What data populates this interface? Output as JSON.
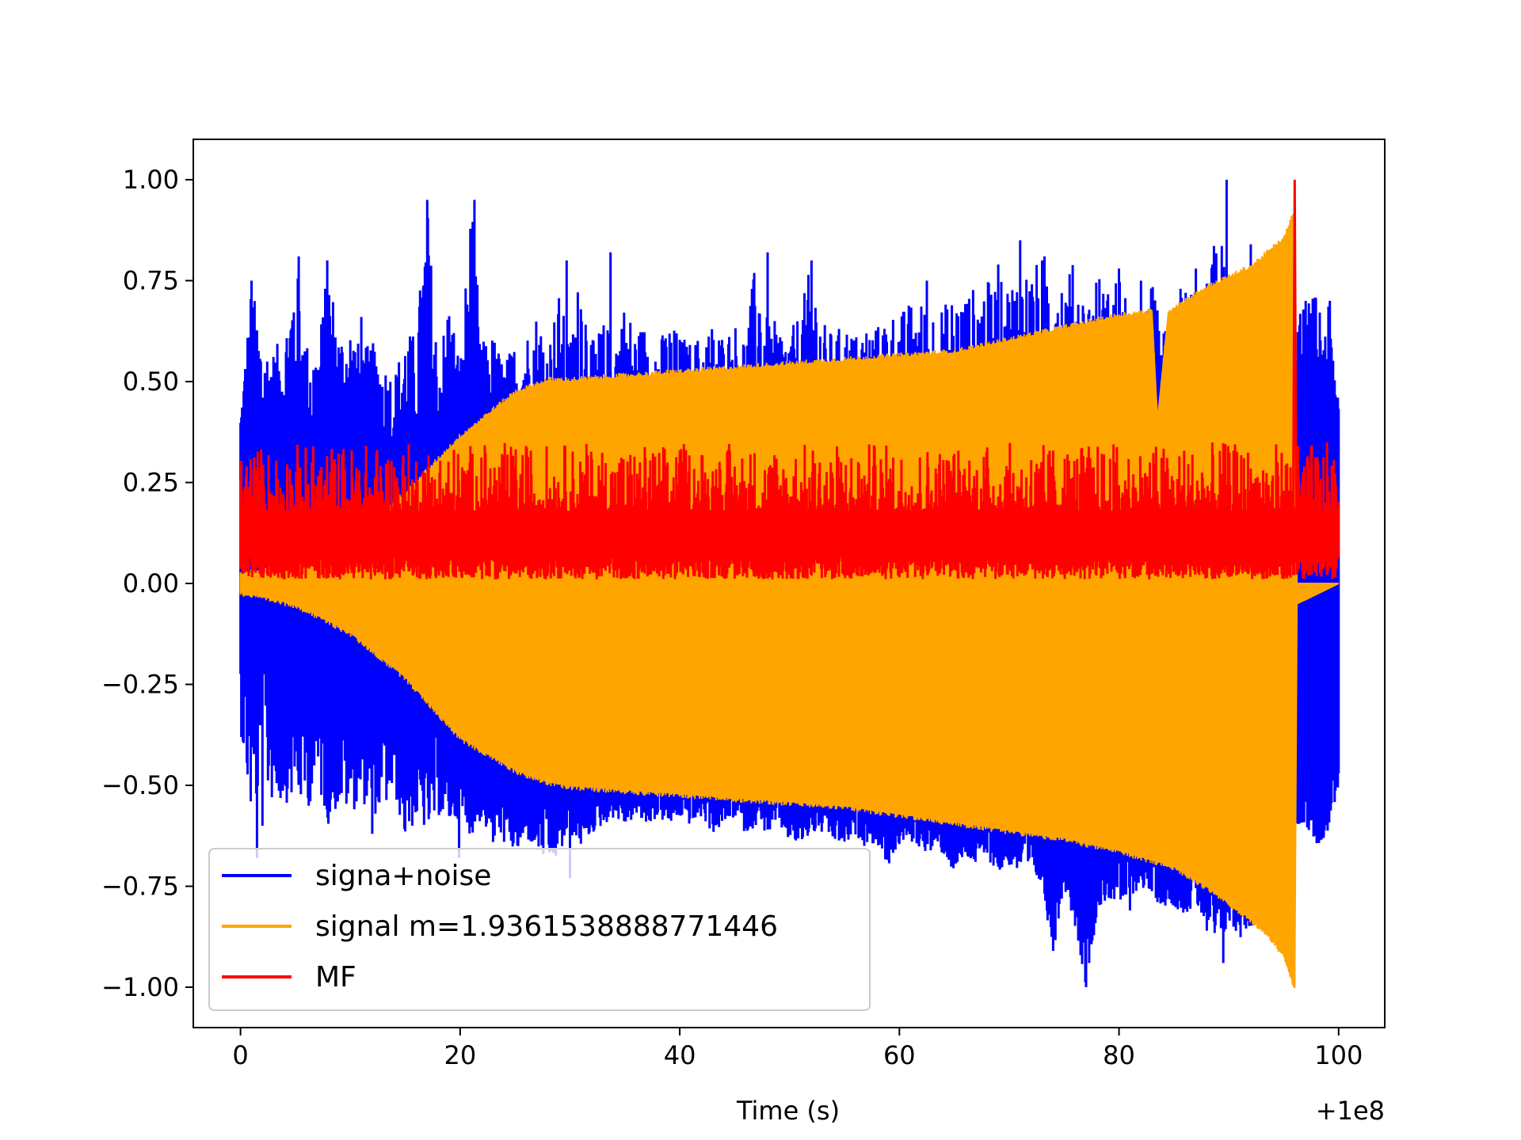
{
  "chart_data": {
    "type": "line",
    "title": "",
    "xlabel": "Time (s)",
    "ylabel": "",
    "x_offset_label": "+1e8",
    "xlim": [
      -4.3,
      104.2
    ],
    "ylim": [
      -1.1,
      1.1
    ],
    "x_ticks": [
      0,
      20,
      40,
      60,
      80,
      100
    ],
    "x_tick_labels": [
      "0",
      "20",
      "40",
      "60",
      "80",
      "100"
    ],
    "y_ticks": [
      1.0,
      0.75,
      0.5,
      0.25,
      0.0,
      -0.25,
      -0.5,
      -0.75,
      -1.0
    ],
    "y_tick_labels": [
      "1.00",
      "0.75",
      "0.50",
      "0.25",
      "0.00",
      "−0.25",
      "−0.50",
      "−0.75",
      "−1.00"
    ],
    "grid": false,
    "legend_position": "lower-left",
    "series": [
      {
        "name": "signa+noise",
        "color": "#0000ff",
        "upper": [
          [
            0,
            0.44
          ],
          [
            1,
            0.75
          ],
          [
            2,
            0.6
          ],
          [
            3,
            0.58
          ],
          [
            4,
            0.62
          ],
          [
            5,
            0.81
          ],
          [
            6,
            0.6
          ],
          [
            7,
            0.58
          ],
          [
            8,
            0.8
          ],
          [
            9,
            0.62
          ],
          [
            10,
            0.65
          ],
          [
            11,
            0.58
          ],
          [
            12,
            0.6
          ],
          [
            13,
            0.55
          ],
          [
            14,
            0.52
          ],
          [
            15,
            0.62
          ],
          [
            16,
            0.62
          ],
          [
            17,
            0.95
          ],
          [
            18,
            0.55
          ],
          [
            19,
            0.72
          ],
          [
            20,
            0.55
          ],
          [
            21,
            0.95
          ],
          [
            22,
            0.6
          ],
          [
            23,
            0.62
          ],
          [
            24,
            0.55
          ],
          [
            25,
            0.6
          ],
          [
            26,
            0.62
          ],
          [
            27,
            0.68
          ],
          [
            28,
            0.6
          ],
          [
            29,
            0.72
          ],
          [
            30,
            0.6
          ],
          [
            31,
            0.8
          ],
          [
            32,
            0.6
          ],
          [
            33,
            0.65
          ],
          [
            34,
            0.62
          ],
          [
            35,
            0.7
          ],
          [
            36,
            0.63
          ],
          [
            37,
            0.65
          ],
          [
            38,
            0.6
          ],
          [
            39,
            0.65
          ],
          [
            40,
            0.62
          ],
          [
            41,
            0.6
          ],
          [
            42,
            0.62
          ],
          [
            43,
            0.65
          ],
          [
            44,
            0.62
          ],
          [
            45,
            0.65
          ],
          [
            46,
            0.62
          ],
          [
            47,
            0.82
          ],
          [
            48,
            0.65
          ],
          [
            49,
            0.65
          ],
          [
            50,
            0.62
          ],
          [
            51,
            0.68
          ],
          [
            52,
            0.8
          ],
          [
            53,
            0.65
          ],
          [
            54,
            0.62
          ],
          [
            55,
            0.65
          ],
          [
            56,
            0.62
          ],
          [
            57,
            0.65
          ],
          [
            58,
            0.64
          ],
          [
            59,
            0.68
          ],
          [
            60,
            0.67
          ],
          [
            61,
            0.7
          ],
          [
            62,
            0.7
          ],
          [
            63,
            0.69
          ],
          [
            64,
            0.69
          ],
          [
            65,
            0.72
          ],
          [
            66,
            0.72
          ],
          [
            67,
            0.74
          ],
          [
            68,
            0.75
          ],
          [
            69,
            0.75
          ],
          [
            70,
            0.75
          ],
          [
            71,
            0.79
          ],
          [
            72,
            0.78
          ],
          [
            73,
            0.81
          ],
          [
            74,
            0.85
          ],
          [
            75,
            0.77
          ],
          [
            76,
            0.8
          ],
          [
            77,
            0.7
          ],
          [
            78,
            0.78
          ],
          [
            79,
            0.73
          ],
          [
            80,
            0.79
          ],
          [
            81,
            0.65
          ],
          [
            82,
            0.62
          ],
          [
            83,
            0.75
          ],
          [
            84,
            0.62
          ],
          [
            85,
            0.8
          ],
          [
            86,
            0.75
          ],
          [
            87,
            0.7
          ],
          [
            88,
            0.75
          ],
          [
            89,
            0.9
          ],
          [
            90,
            0.78
          ],
          [
            91,
            0.8
          ],
          [
            92,
            0.72
          ],
          [
            93,
            0.75
          ],
          [
            94,
            0.8
          ],
          [
            95,
            0.82
          ],
          [
            96,
            0.65
          ],
          [
            97,
            0.7
          ],
          [
            98,
            0.72
          ],
          [
            99,
            0.7
          ],
          [
            100,
            0.5
          ]
        ],
        "lower": [
          [
            0,
            -0.4
          ],
          [
            1,
            -0.65
          ],
          [
            2,
            -0.55
          ],
          [
            3,
            -0.6
          ],
          [
            4,
            -0.6
          ],
          [
            5,
            -0.58
          ],
          [
            6,
            -0.62
          ],
          [
            7,
            -0.55
          ],
          [
            8,
            -0.65
          ],
          [
            9,
            -0.6
          ],
          [
            10,
            -0.62
          ],
          [
            11,
            -0.58
          ],
          [
            12,
            -0.62
          ],
          [
            13,
            -0.6
          ],
          [
            14,
            -0.55
          ],
          [
            15,
            -0.68
          ],
          [
            16,
            -0.62
          ],
          [
            17,
            -0.65
          ],
          [
            18,
            -0.6
          ],
          [
            19,
            -0.62
          ],
          [
            20,
            -0.6
          ],
          [
            21,
            -0.65
          ],
          [
            22,
            -0.6
          ],
          [
            23,
            -0.68
          ],
          [
            24,
            -0.62
          ],
          [
            25,
            -0.7
          ],
          [
            26,
            -0.65
          ],
          [
            27,
            -0.68
          ],
          [
            28,
            -0.72
          ],
          [
            29,
            -0.7
          ],
          [
            30,
            -0.62
          ],
          [
            31,
            -0.65
          ],
          [
            32,
            -0.62
          ],
          [
            33,
            -0.6
          ],
          [
            34,
            -0.58
          ],
          [
            35,
            -0.6
          ],
          [
            36,
            -0.58
          ],
          [
            37,
            -0.6
          ],
          [
            38,
            -0.58
          ],
          [
            39,
            -0.6
          ],
          [
            40,
            -0.58
          ],
          [
            41,
            -0.6
          ],
          [
            42,
            -0.58
          ],
          [
            43,
            -0.62
          ],
          [
            44,
            -0.6
          ],
          [
            45,
            -0.58
          ],
          [
            46,
            -0.62
          ],
          [
            47,
            -0.6
          ],
          [
            48,
            -0.62
          ],
          [
            49,
            -0.6
          ],
          [
            50,
            -0.64
          ],
          [
            51,
            -0.65
          ],
          [
            52,
            -0.62
          ],
          [
            53,
            -0.62
          ],
          [
            54,
            -0.64
          ],
          [
            55,
            -0.65
          ],
          [
            56,
            -0.63
          ],
          [
            57,
            -0.64
          ],
          [
            58,
            -0.65
          ],
          [
            59,
            -0.7
          ],
          [
            60,
            -0.65
          ],
          [
            61,
            -0.64
          ],
          [
            62,
            -0.66
          ],
          [
            63,
            -0.67
          ],
          [
            64,
            -0.67
          ],
          [
            65,
            -0.72
          ],
          [
            66,
            -0.68
          ],
          [
            67,
            -0.7
          ],
          [
            68,
            -0.68
          ],
          [
            69,
            -0.72
          ],
          [
            70,
            -0.7
          ],
          [
            71,
            -0.72
          ],
          [
            72,
            -0.72
          ],
          [
            73,
            -0.75
          ],
          [
            74,
            -0.92
          ],
          [
            75,
            -0.75
          ],
          [
            76,
            -0.85
          ],
          [
            77,
            -1.0
          ],
          [
            78,
            -0.82
          ],
          [
            79,
            -0.78
          ],
          [
            80,
            -0.8
          ],
          [
            81,
            -0.78
          ],
          [
            82,
            -0.75
          ],
          [
            83,
            -0.78
          ],
          [
            84,
            -0.8
          ],
          [
            85,
            -0.8
          ],
          [
            86,
            -0.82
          ],
          [
            87,
            -0.8
          ],
          [
            88,
            -0.85
          ],
          [
            89,
            -0.9
          ],
          [
            90,
            -0.85
          ],
          [
            91,
            -0.88
          ],
          [
            92,
            -0.85
          ],
          [
            93,
            -0.85
          ],
          [
            94,
            -0.9
          ],
          [
            95,
            -0.92
          ],
          [
            96,
            -0.6
          ],
          [
            97,
            -0.6
          ],
          [
            98,
            -0.65
          ],
          [
            99,
            -0.62
          ],
          [
            100,
            -0.5
          ]
        ],
        "spikes": [
          [
            1,
            0.75
          ],
          [
            5.3,
            0.81
          ],
          [
            7.9,
            0.8
          ],
          [
            11,
            0.66
          ],
          [
            17,
            0.95
          ],
          [
            21.3,
            0.95
          ],
          [
            29.7,
            0.8
          ],
          [
            33.7,
            0.82
          ],
          [
            48,
            0.82
          ],
          [
            52,
            0.8
          ],
          [
            62.5,
            0.75
          ],
          [
            69,
            0.79
          ],
          [
            71,
            0.85
          ],
          [
            73,
            0.8
          ],
          [
            80,
            0.78
          ],
          [
            82,
            0.75
          ],
          [
            85.6,
            0.73
          ],
          [
            87,
            0.78
          ],
          [
            89.8,
            1.0
          ],
          [
            91,
            0.75
          ],
          [
            92,
            0.84
          ],
          [
            97,
            0.7
          ],
          [
            99.2,
            0.7
          ],
          [
            77,
            -1.0
          ],
          [
            74,
            -0.91
          ],
          [
            89.5,
            -0.94
          ],
          [
            88,
            -0.86
          ],
          [
            81,
            -0.81
          ],
          [
            95.2,
            -0.9
          ],
          [
            2,
            -0.6
          ],
          [
            1.5,
            -0.68
          ],
          [
            12,
            -0.62
          ],
          [
            19.9,
            -0.68
          ],
          [
            24,
            -0.64
          ],
          [
            30,
            -0.73
          ],
          [
            56.8,
            -0.65
          ],
          [
            59,
            -0.66
          ]
        ],
        "lower_envelope_start": [
          [
            0,
            -0.05
          ],
          [
            5,
            -0.08
          ],
          [
            10,
            -0.15
          ],
          [
            15,
            -0.27
          ],
          [
            20,
            -0.4
          ],
          [
            25,
            -0.48
          ],
          [
            30,
            -0.5
          ]
        ]
      },
      {
        "name": "signal m=1.9361538888771446",
        "color": "#ffa500",
        "upper": [
          [
            0,
            0.02
          ],
          [
            5,
            0.05
          ],
          [
            10,
            0.12
          ],
          [
            15,
            0.22
          ],
          [
            20,
            0.36
          ],
          [
            25,
            0.47
          ],
          [
            28,
            0.5
          ],
          [
            30,
            0.5
          ],
          [
            35,
            0.51
          ],
          [
            40,
            0.52
          ],
          [
            45,
            0.53
          ],
          [
            50,
            0.54
          ],
          [
            55,
            0.55
          ],
          [
            60,
            0.56
          ],
          [
            65,
            0.57
          ],
          [
            70,
            0.6
          ],
          [
            75,
            0.63
          ],
          [
            80,
            0.66
          ],
          [
            83,
            0.67
          ],
          [
            83.5,
            0.4
          ],
          [
            84.5,
            0.67
          ],
          [
            88,
            0.73
          ],
          [
            92,
            0.78
          ],
          [
            95,
            0.85
          ],
          [
            96,
            0.92
          ],
          [
            96.2,
            0.0
          ],
          [
            100,
            0.0
          ]
        ],
        "lower": [
          [
            0,
            -0.02
          ],
          [
            5,
            -0.05
          ],
          [
            10,
            -0.12
          ],
          [
            15,
            -0.23
          ],
          [
            20,
            -0.38
          ],
          [
            25,
            -0.46
          ],
          [
            28,
            -0.49
          ],
          [
            30,
            -0.5
          ],
          [
            35,
            -0.51
          ],
          [
            40,
            -0.52
          ],
          [
            45,
            -0.53
          ],
          [
            50,
            -0.54
          ],
          [
            55,
            -0.55
          ],
          [
            60,
            -0.57
          ],
          [
            65,
            -0.59
          ],
          [
            70,
            -0.61
          ],
          [
            75,
            -0.63
          ],
          [
            80,
            -0.66
          ],
          [
            85,
            -0.7
          ],
          [
            88,
            -0.75
          ],
          [
            90,
            -0.79
          ],
          [
            92,
            -0.83
          ],
          [
            94,
            -0.88
          ],
          [
            95,
            -0.92
          ],
          [
            96,
            -1.0
          ],
          [
            96.2,
            -0.05
          ],
          [
            97,
            -0.04
          ],
          [
            100,
            0.0
          ]
        ]
      },
      {
        "name": "MF",
        "color": "#ff0000",
        "peak": [
          96.0,
          1.0
        ],
        "baseline_mean": 0.1,
        "noise_max": 0.35
      }
    ]
  },
  "legend": {
    "items": [
      {
        "label": "signa+noise",
        "color": "#0000ff"
      },
      {
        "label": "signal m=1.9361538888771446",
        "color": "#ffa500"
      },
      {
        "label": "MF",
        "color": "#ff0000"
      }
    ]
  }
}
